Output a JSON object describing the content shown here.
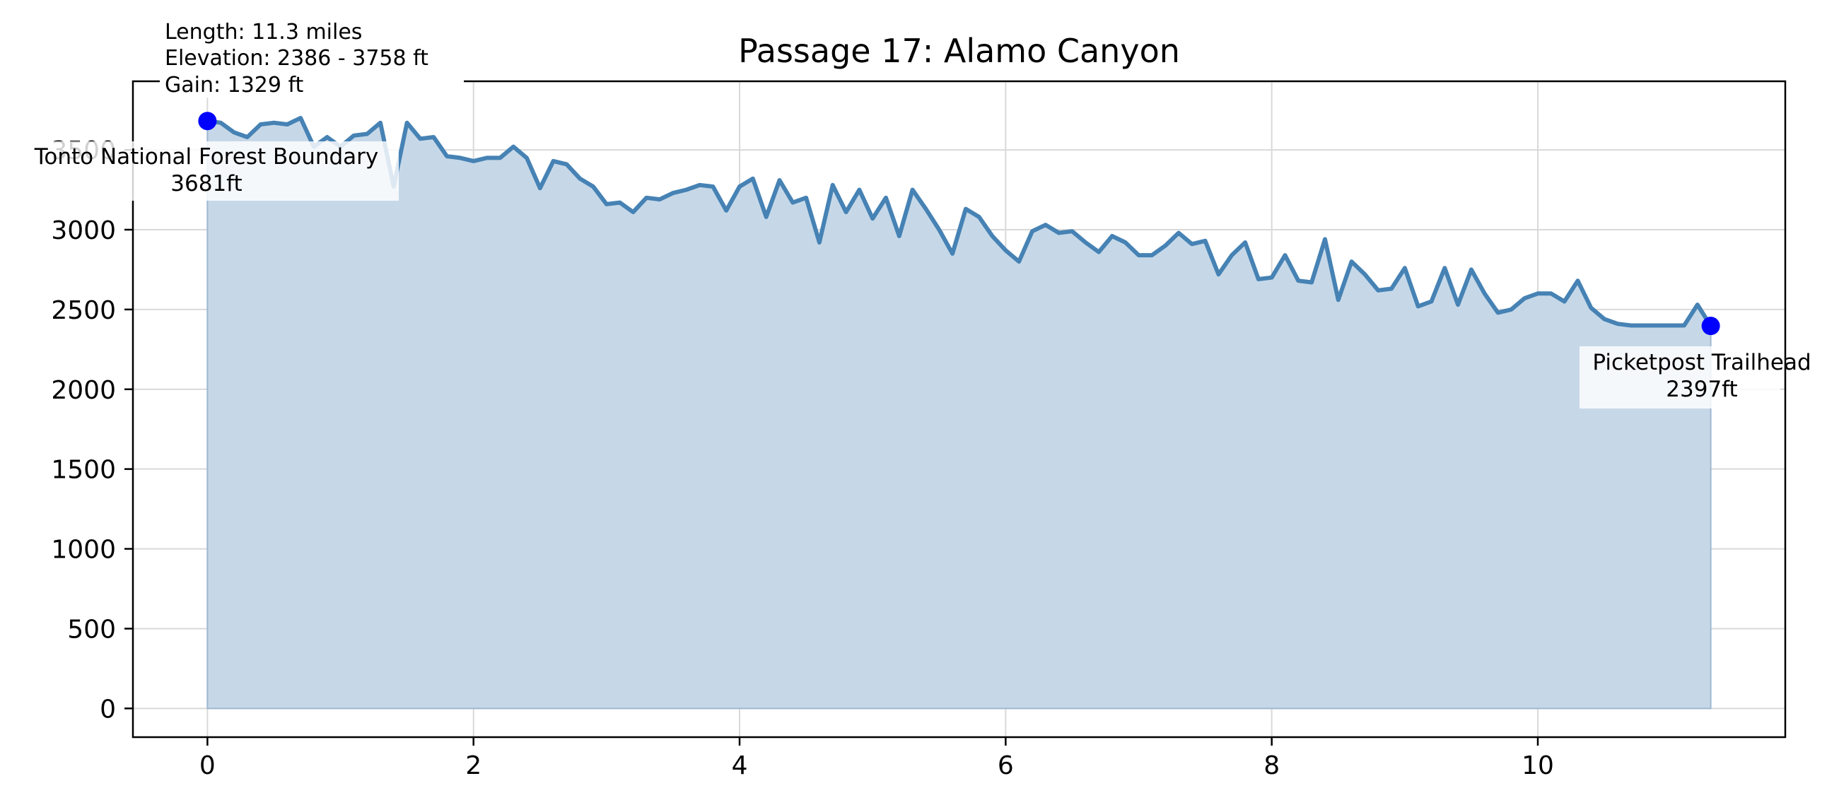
{
  "chart_data": {
    "type": "area",
    "title": "Passage 17: Alamo Canyon",
    "xlabel": "",
    "ylabel": "",
    "xlim": [
      -0.56,
      11.86
    ],
    "ylim": [
      -180,
      3930
    ],
    "xticks": [
      0,
      2,
      4,
      6,
      8,
      10
    ],
    "yticks": [
      0,
      500,
      1000,
      1500,
      2000,
      2500,
      3000,
      3500
    ],
    "grid": true,
    "colors": {
      "line": "#4682b4",
      "fill": "#c6d8e8",
      "marker": "#0000ff"
    },
    "stats": {
      "length": "Length: 11.3 miles",
      "elevation": "Elevation: 2386 - 3758 ft",
      "gain": "Gain: 1329 ft"
    },
    "annotations": [
      {
        "label": "Tonto National Forest Boundary",
        "value_text": "3681ft",
        "x": 0.0,
        "y": 3681
      },
      {
        "label": "Picketpost Trailhead",
        "value_text": "2397ft",
        "x": 11.3,
        "y": 2397
      }
    ],
    "series": [
      {
        "x": [
          0.0,
          0.1,
          0.2,
          0.3,
          0.4,
          0.5,
          0.6,
          0.7,
          0.8,
          0.9,
          1.0,
          1.1,
          1.2,
          1.3,
          1.4,
          1.5,
          1.6,
          1.7,
          1.8,
          1.9,
          2.0,
          2.1,
          2.2,
          2.3,
          2.4,
          2.5,
          2.6,
          2.7,
          2.8,
          2.9,
          3.0,
          3.1,
          3.2,
          3.3,
          3.4,
          3.5,
          3.6,
          3.7,
          3.8,
          3.9,
          4.0,
          4.1,
          4.2,
          4.3,
          4.4,
          4.5,
          4.6,
          4.7,
          4.8,
          4.9,
          5.0,
          5.1,
          5.2,
          5.3,
          5.4,
          5.5,
          5.6,
          5.7,
          5.8,
          5.9,
          6.0,
          6.1,
          6.2,
          6.3,
          6.4,
          6.5,
          6.6,
          6.7,
          6.8,
          6.9,
          7.0,
          7.1,
          7.2,
          7.3,
          7.4,
          7.5,
          7.6,
          7.7,
          7.8,
          7.9,
          8.0,
          8.1,
          8.2,
          8.3,
          8.4,
          8.5,
          8.6,
          8.7,
          8.8,
          8.9,
          9.0,
          9.1,
          9.2,
          9.3,
          9.4,
          9.5,
          9.6,
          9.7,
          9.8,
          9.9,
          10.0,
          10.1,
          10.2,
          10.3,
          10.4,
          10.5,
          10.6,
          10.7,
          10.8,
          10.9,
          11.0,
          11.1,
          11.2,
          11.3
        ],
        "y": [
          3681,
          3670,
          3610,
          3580,
          3660,
          3670,
          3660,
          3700,
          3520,
          3580,
          3520,
          3590,
          3600,
          3670,
          3270,
          3670,
          3570,
          3580,
          3460,
          3450,
          3430,
          3450,
          3450,
          3520,
          3450,
          3260,
          3430,
          3410,
          3320,
          3270,
          3160,
          3170,
          3110,
          3200,
          3190,
          3230,
          3250,
          3280,
          3270,
          3120,
          3270,
          3320,
          3080,
          3310,
          3170,
          3200,
          2920,
          3280,
          3110,
          3250,
          3070,
          3200,
          2960,
          3250,
          3130,
          3000,
          2850,
          3130,
          3080,
          2960,
          2870,
          2800,
          2990,
          3030,
          2980,
          2990,
          2920,
          2860,
          2960,
          2920,
          2840,
          2840,
          2900,
          2980,
          2910,
          2930,
          2720,
          2840,
          2920,
          2690,
          2700,
          2840,
          2680,
          2670,
          2940,
          2560,
          2800,
          2720,
          2620,
          2630,
          2760,
          2520,
          2550,
          2760,
          2530,
          2750,
          2600,
          2480,
          2500,
          2570,
          2600,
          2600,
          2550,
          2680,
          2510,
          2440,
          2410,
          2400,
          2400,
          2400,
          2400,
          2400,
          2530,
          2397
        ]
      }
    ]
  }
}
